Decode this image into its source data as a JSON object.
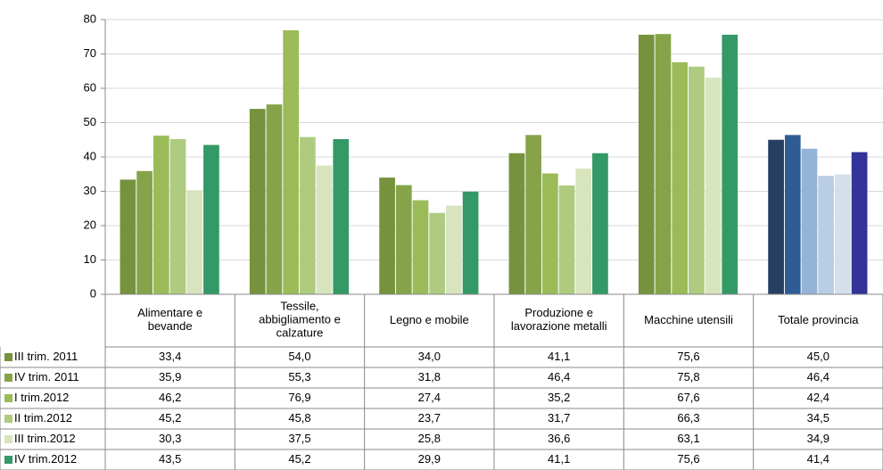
{
  "chart_data": {
    "type": "bar",
    "categories": [
      "Alimentare e\nbevande",
      "Tessile,\nabbigliamento e\ncalzature",
      "Legno e mobile",
      "Produzione e\nlavorazione metalli",
      "Macchine utensili",
      "Totale provincia"
    ],
    "series": [
      {
        "name": "III trim. 2011",
        "color": "#76923c",
        "total_color": "#243f60",
        "values": [
          33.4,
          54.0,
          34.0,
          41.1,
          75.6,
          45.0
        ],
        "value_labels": [
          "33,4",
          "54,0",
          "34,0",
          "41,1",
          "75,6",
          "45,0"
        ]
      },
      {
        "name": "IV trim. 2011",
        "color": "#86a34a",
        "total_color": "#2e5d96",
        "values": [
          35.9,
          55.3,
          31.8,
          46.4,
          75.8,
          46.4
        ],
        "value_labels": [
          "35,9",
          "55,3",
          "31,8",
          "46,4",
          "75,8",
          "46,4"
        ]
      },
      {
        "name": "I trim.2012",
        "color": "#9bbb59",
        "total_color": "#95b3d7",
        "values": [
          46.2,
          76.9,
          27.4,
          35.2,
          67.6,
          42.4
        ],
        "value_labels": [
          "46,2",
          "76,9",
          "27,4",
          "35,2",
          "67,6",
          "42,4"
        ]
      },
      {
        "name": "II trim.2012",
        "color": "#afcb80",
        "total_color": "#b9cde5",
        "values": [
          45.2,
          45.8,
          23.7,
          31.7,
          66.3,
          34.5
        ],
        "value_labels": [
          "45,2",
          "45,8",
          "23,7",
          "31,7",
          "66,3",
          "34,5"
        ]
      },
      {
        "name": "III trim.2012",
        "color": "#d7e4bd",
        "total_color": "#d4dfea",
        "values": [
          30.3,
          37.5,
          25.8,
          36.6,
          63.1,
          34.9
        ],
        "value_labels": [
          "30,3",
          "37,5",
          "25,8",
          "36,6",
          "63,1",
          "34,9"
        ]
      },
      {
        "name": "IV trim.2012",
        "color": "#339966",
        "total_color": "#333399",
        "values": [
          43.5,
          45.2,
          29.9,
          41.1,
          75.6,
          41.4
        ],
        "value_labels": [
          "43,5",
          "45,2",
          "29,9",
          "41,1",
          "75,6",
          "41,4"
        ]
      }
    ],
    "ylim": [
      0,
      80
    ],
    "yticks": [
      0,
      10,
      20,
      30,
      40,
      50,
      60,
      70,
      80
    ],
    "grid": true
  }
}
